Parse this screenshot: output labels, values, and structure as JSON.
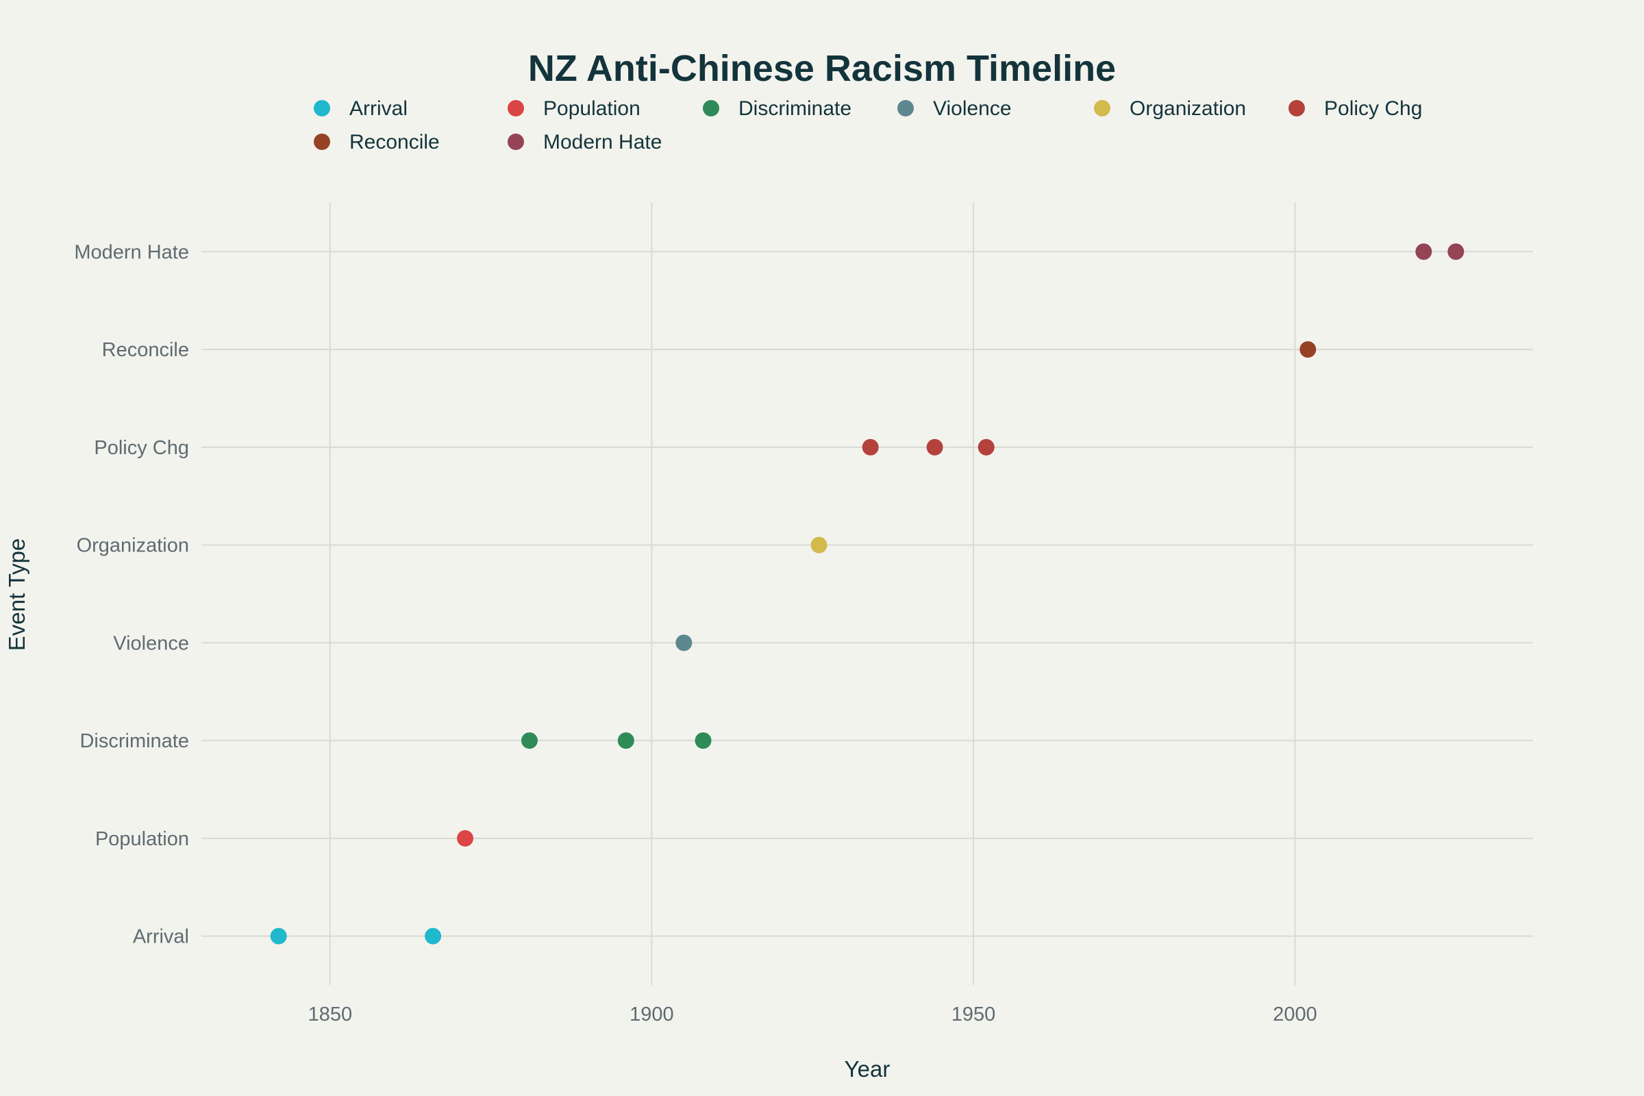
{
  "chart_data": {
    "type": "scatter",
    "title": "NZ Anti-Chinese Racism Timeline",
    "xlabel": "Year",
    "ylabel": "Event Type",
    "xlim": [
      1830,
      2037
    ],
    "xticks": [
      1850,
      1900,
      1950,
      2000
    ],
    "categories": [
      "Arrival",
      "Population",
      "Discriminate",
      "Violence",
      "Organization",
      "Policy Chg",
      "Reconcile",
      "Modern Hate"
    ],
    "grid": true,
    "legend_position": "top",
    "series": [
      {
        "name": "Arrival",
        "color": "#1FB8CD",
        "x": [
          1842,
          1866
        ]
      },
      {
        "name": "Population",
        "color": "#DB4545",
        "x": [
          1871
        ]
      },
      {
        "name": "Discriminate",
        "color": "#2E8B57",
        "x": [
          1881,
          1896,
          1908
        ]
      },
      {
        "name": "Violence",
        "color": "#5D878F",
        "x": [
          1905
        ]
      },
      {
        "name": "Organization",
        "color": "#D2BA4C",
        "x": [
          1926
        ]
      },
      {
        "name": "Policy Chg",
        "color": "#B4413C",
        "x": [
          1934,
          1944,
          1952
        ]
      },
      {
        "name": "Reconcile",
        "color": "#964325",
        "x": [
          2002
        ]
      },
      {
        "name": "Modern Hate",
        "color": "#944454",
        "x": [
          2020,
          2025
        ]
      }
    ]
  }
}
